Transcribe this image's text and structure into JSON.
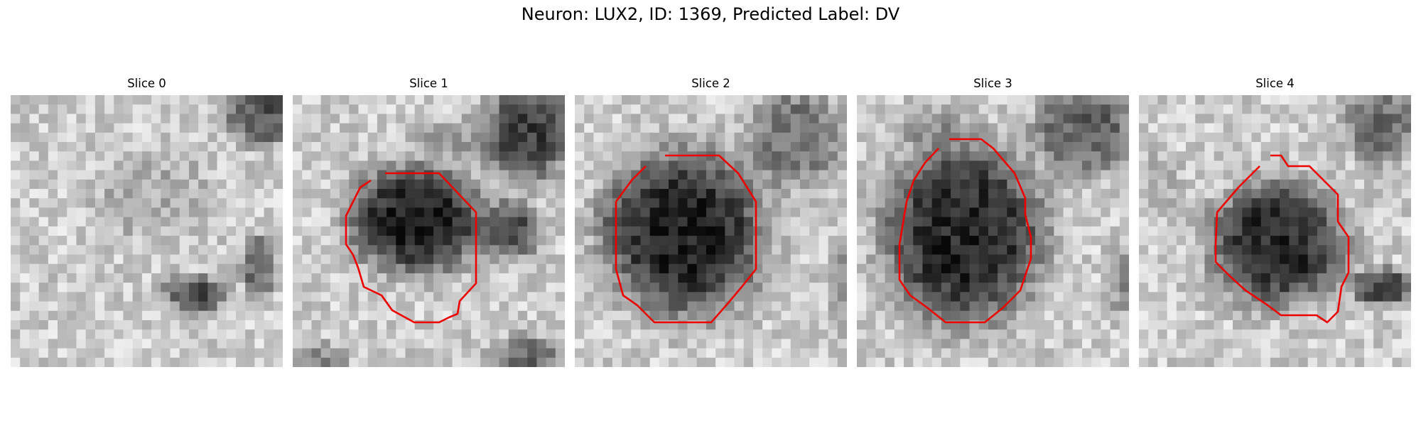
{
  "figure": {
    "title": "Neuron: LUX2, ID: 1369, Predicted Label: DV"
  },
  "colors": {
    "contour": "#ee0000",
    "background": "#ffffff"
  },
  "panels": [
    {
      "title": "Slice 0",
      "has_contour": false
    },
    {
      "title": "Slice 1",
      "has_contour": true
    },
    {
      "title": "Slice 2",
      "has_contour": true
    },
    {
      "title": "Slice 3",
      "has_contour": true
    },
    {
      "title": "Slice 4",
      "has_contour": true
    }
  ]
}
